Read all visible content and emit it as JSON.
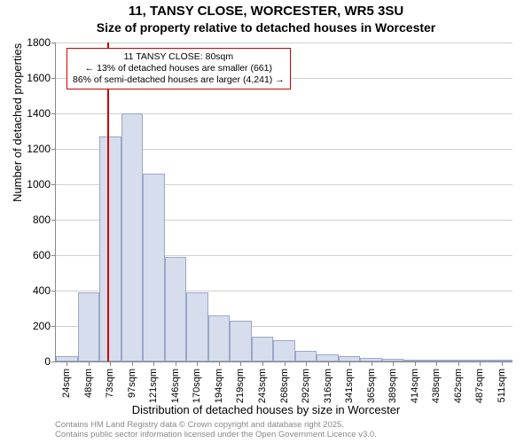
{
  "title": {
    "main": "11, TANSY CLOSE, WORCESTER, WR5 3SU",
    "sub": "Size of property relative to detached houses in Worcester"
  },
  "chart": {
    "type": "histogram",
    "ylabel": "Number of detached properties",
    "xlabel": "Distribution of detached houses by size in Worcester",
    "ylim": [
      0,
      1800
    ],
    "ytick_step": 200,
    "bar_fill": "#d6ddec",
    "bar_border": "#99a8c9",
    "grid_color": "#d0d0d0",
    "axis_color": "#888888",
    "x_categories": [
      "24sqm",
      "48sqm",
      "73sqm",
      "97sqm",
      "121sqm",
      "146sqm",
      "170sqm",
      "194sqm",
      "219sqm",
      "243sqm",
      "268sqm",
      "292sqm",
      "316sqm",
      "341sqm",
      "365sqm",
      "389sqm",
      "414sqm",
      "438sqm",
      "462sqm",
      "487sqm",
      "511sqm"
    ],
    "values": [
      30,
      390,
      1270,
      1400,
      1060,
      590,
      390,
      260,
      230,
      140,
      120,
      60,
      40,
      30,
      20,
      15,
      10,
      5,
      5,
      5,
      2
    ],
    "marker": {
      "color": "#cc0000",
      "category_index": 2,
      "position_within_bin": 0.35
    },
    "info_box": {
      "line1": "11 TANSY CLOSE: 80sqm",
      "line2": "← 13% of detached houses are smaller (661)",
      "line3": "86% of semi-detached houses are larger (4,241) →"
    }
  },
  "footer": {
    "line1": "Contains HM Land Registry data © Crown copyright and database right 2025.",
    "line2": "Contains public sector information licensed under the Open Government Licence v3.0."
  }
}
